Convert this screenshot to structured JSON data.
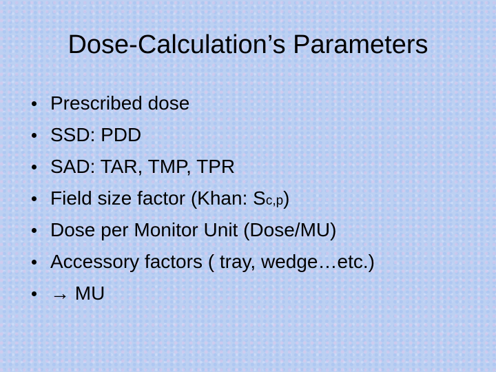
{
  "title": "Dose-Calculation’s Parameters",
  "bullets": [
    "Prescribed dose",
    "SSD: PDD",
    "SAD: TAR, TMP, TPR",
    {
      "text": "Field size factor (Khan: S",
      "subscript": "c,p",
      "suffix": ")"
    },
    "Dose per Monitor Unit (Dose/MU)",
    "Accessory factors ( tray, wedge…etc.)",
    "→ MU"
  ]
}
